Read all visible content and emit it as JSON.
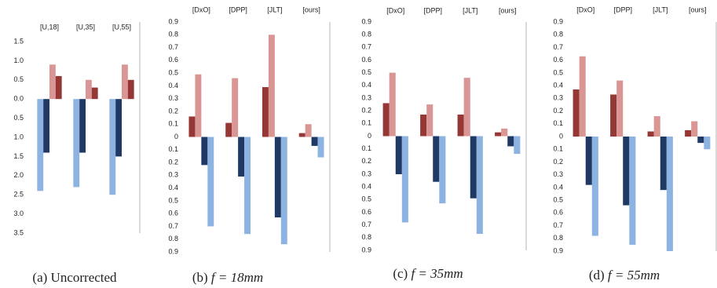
{
  "chart_data": [
    {
      "type": "bar",
      "caption": {
        "label": "(a)",
        "text": "Uncorrected"
      },
      "categories": [
        "[U,18]",
        "[U,35]",
        "[U,55]"
      ],
      "series": [
        {
          "color": "#8db3e2",
          "values": [
            -2.4,
            -2.3,
            -2.5
          ]
        },
        {
          "color": "#1f3864",
          "values": [
            -1.4,
            -1.4,
            -1.5
          ]
        },
        {
          "color": "#d99694",
          "values": [
            0.9,
            0.5,
            0.9
          ]
        },
        {
          "color": "#953735",
          "values": [
            0.6,
            0.3,
            0.5
          ]
        }
      ],
      "ylim": [
        -3.5,
        1.5
      ],
      "yticks": [
        1.5,
        {
          "value": 1,
          "label": "1.0"
        },
        0.5,
        {
          "value": 0,
          "label": "0.0"
        },
        {
          "value": -0.5,
          "label": "0.5"
        },
        {
          "value": -1,
          "label": "1.0"
        },
        {
          "value": -1.5,
          "label": "1.5"
        },
        {
          "value": -2,
          "label": "2.0"
        },
        {
          "value": -2.5,
          "label": "2.5"
        },
        {
          "value": -3,
          "label": "3.0"
        },
        {
          "value": -3.5,
          "label": "3.5"
        }
      ]
    },
    {
      "type": "bar",
      "caption": {
        "label": "(b)",
        "math": "f = 18mm"
      },
      "categories": [
        "[DxO]",
        "[DPP]",
        "[JLT]",
        "[ours]"
      ],
      "series": [
        {
          "color": "#953735",
          "values": [
            0.16,
            0.11,
            0.39,
            0.03
          ]
        },
        {
          "color": "#d99694",
          "values": [
            0.49,
            0.46,
            0.8,
            0.1
          ]
        },
        {
          "color": "#1f3864",
          "values": [
            -0.22,
            -0.31,
            -0.63,
            -0.07
          ]
        },
        {
          "color": "#8db3e2",
          "values": [
            -0.7,
            -0.76,
            -0.84,
            -0.16
          ]
        }
      ],
      "ylim": [
        -0.9,
        0.9
      ],
      "yticks": [
        0.9,
        0.8,
        0.7,
        0.6,
        0.5,
        0.4,
        0.3,
        0.2,
        0.1,
        0,
        {
          "value": -0.1,
          "label": "0.1"
        },
        {
          "value": -0.2,
          "label": "0.2"
        },
        {
          "value": -0.3,
          "label": "0.3"
        },
        {
          "value": -0.4,
          "label": "0.4"
        },
        {
          "value": -0.5,
          "label": "0.5"
        },
        {
          "value": -0.6,
          "label": "0.6"
        },
        {
          "value": -0.7,
          "label": "0.7"
        },
        {
          "value": -0.8,
          "label": "0.8"
        },
        {
          "value": -0.9,
          "label": "0.9"
        }
      ]
    },
    {
      "type": "bar",
      "caption": {
        "label": "(c)",
        "math": "f = 35mm"
      },
      "categories": [
        "[DxO]",
        "[DPP]",
        "[JLT]",
        "[ours]"
      ],
      "series": [
        {
          "color": "#953735",
          "values": [
            0.26,
            0.17,
            0.17,
            0.03
          ]
        },
        {
          "color": "#d99694",
          "values": [
            0.5,
            0.25,
            0.46,
            0.06
          ]
        },
        {
          "color": "#1f3864",
          "values": [
            -0.3,
            -0.36,
            -0.49,
            -0.08
          ]
        },
        {
          "color": "#8db3e2",
          "values": [
            -0.68,
            -0.53,
            -0.77,
            -0.14
          ]
        }
      ],
      "ylim": [
        -0.9,
        0.9
      ],
      "yticks": [
        0.9,
        0.8,
        0.7,
        0.6,
        0.5,
        0.4,
        0.3,
        0.2,
        0.1,
        0,
        {
          "value": -0.1,
          "label": "0.1"
        },
        {
          "value": -0.2,
          "label": "0.2"
        },
        {
          "value": -0.3,
          "label": "0.3"
        },
        {
          "value": -0.4,
          "label": "0.4"
        },
        {
          "value": -0.5,
          "label": "0.5"
        },
        {
          "value": -0.6,
          "label": "0.6"
        },
        {
          "value": -0.7,
          "label": "0.7"
        },
        {
          "value": -0.8,
          "label": "0.8"
        },
        {
          "value": -0.9,
          "label": "0.9"
        }
      ]
    },
    {
      "type": "bar",
      "caption": {
        "label": "(d)",
        "math": "f = 55mm"
      },
      "categories": [
        "[DxO]",
        "[DPP]",
        "[JLT]",
        "[ours]"
      ],
      "series": [
        {
          "color": "#953735",
          "values": [
            0.37,
            0.33,
            0.04,
            0.05
          ]
        },
        {
          "color": "#d99694",
          "values": [
            0.63,
            0.44,
            0.16,
            0.12
          ]
        },
        {
          "color": "#1f3864",
          "values": [
            -0.38,
            -0.54,
            -0.42,
            -0.05
          ]
        },
        {
          "color": "#8db3e2",
          "values": [
            -0.78,
            -0.85,
            -0.9,
            -0.1
          ]
        }
      ],
      "ylim": [
        -0.9,
        0.9
      ],
      "yticks": [
        0.9,
        0.8,
        0.7,
        0.6,
        0.5,
        0.4,
        0.3,
        0.2,
        0.1,
        0,
        {
          "value": -0.1,
          "label": "0.1"
        },
        {
          "value": -0.2,
          "label": "0.2"
        },
        {
          "value": -0.3,
          "label": "0.3"
        },
        {
          "value": -0.4,
          "label": "0.4"
        },
        {
          "value": -0.5,
          "label": "0.5"
        },
        {
          "value": -0.6,
          "label": "0.6"
        },
        {
          "value": -0.7,
          "label": "0.7"
        },
        {
          "value": -0.8,
          "label": "0.8"
        },
        {
          "value": -0.9,
          "label": "0.9"
        }
      ]
    }
  ]
}
